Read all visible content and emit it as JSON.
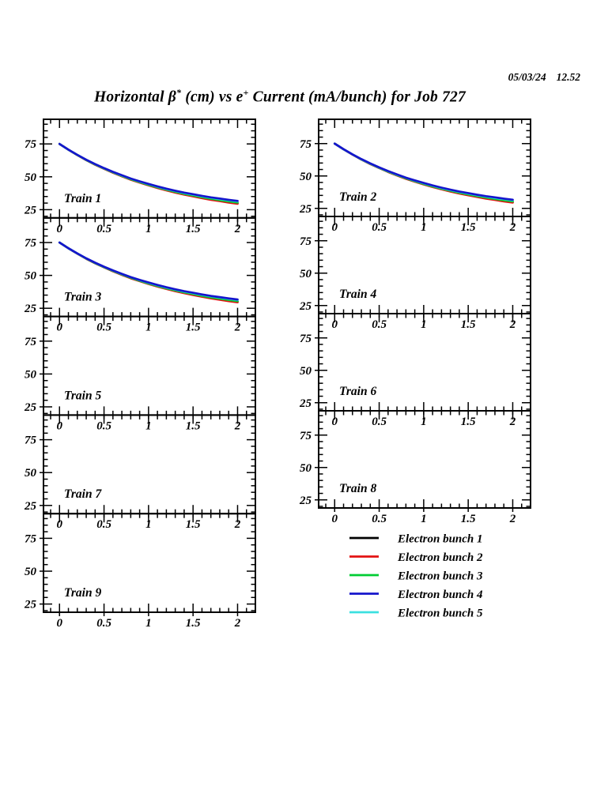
{
  "header": {
    "date": "05/03/24",
    "time": "12.52",
    "title_parts": {
      "t1": "Horizontal β",
      "sup1": "*",
      "t2": " (cm) vs e",
      "sup2": "+",
      "t3": " Current (mA/bunch) for Job 727"
    }
  },
  "chart_data": {
    "type": "line",
    "title": "Horizontal β* (cm) vs e+ Current (mA/bunch) for Job 727",
    "xlabel": "e+ Current (mA/bunch)",
    "ylabel": "Horizontal β* (cm)",
    "xlim": [
      -0.18,
      2.2
    ],
    "ylim": [
      18.75,
      93.75
    ],
    "x_major_ticks": [
      "0",
      "0.5",
      "1",
      "1.5",
      "2"
    ],
    "x_major_values": [
      0,
      0.5,
      1,
      1.5,
      2
    ],
    "x_minor_step": 0.1,
    "y_major_ticks": [
      "75",
      "50",
      "25"
    ],
    "y_major_values": [
      75,
      50,
      25
    ],
    "y_minor_step": 5,
    "grid": false,
    "legend_position": "below-right",
    "panels": [
      {
        "label": "Train 1",
        "has_data": true
      },
      {
        "label": "Train 2",
        "has_data": true
      },
      {
        "label": "Train 3",
        "has_data": true
      },
      {
        "label": "Train 4",
        "has_data": false
      },
      {
        "label": "Train 5",
        "has_data": false
      },
      {
        "label": "Train 6",
        "has_data": false
      },
      {
        "label": "Train 7",
        "has_data": false
      },
      {
        "label": "Train 8",
        "has_data": false
      },
      {
        "label": "Train 9",
        "has_data": false
      }
    ],
    "x": [
      0,
      0.1,
      0.2,
      0.3,
      0.4,
      0.5,
      0.6,
      0.7,
      0.8,
      0.9,
      1.0,
      1.1,
      1.2,
      1.3,
      1.4,
      1.5,
      1.6,
      1.7,
      1.8,
      1.9,
      2.0
    ],
    "series": [
      {
        "name": "Electron bunch 1",
        "color": "#000000",
        "values": [
          75.0,
          70.6,
          66.6,
          62.7,
          59.3,
          56.2,
          53.3,
          50.5,
          48.0,
          45.8,
          43.7,
          41.7,
          39.9,
          38.3,
          36.8,
          35.4,
          34.1,
          32.9,
          31.9,
          30.8,
          29.9
        ]
      },
      {
        "name": "Electron bunch 2",
        "color": "#e31212",
        "values": [
          75.0,
          70.6,
          66.5,
          62.7,
          59.2,
          56.1,
          53.1,
          50.4,
          47.8,
          45.6,
          43.5,
          41.5,
          39.7,
          38.0,
          36.5,
          35.1,
          33.8,
          32.5,
          31.5,
          30.4,
          29.5
        ]
      },
      {
        "name": "Electron bunch 3",
        "color": "#00cc33",
        "values": [
          75.0,
          70.6,
          66.6,
          62.8,
          59.4,
          56.3,
          53.4,
          50.7,
          48.2,
          46.0,
          43.9,
          42.0,
          40.2,
          38.6,
          37.1,
          35.8,
          34.5,
          33.3,
          32.3,
          31.3,
          30.4
        ]
      },
      {
        "name": "Electron bunch 4",
        "color": "#1515cc",
        "values": [
          75.0,
          70.7,
          66.7,
          63.0,
          59.7,
          56.6,
          53.8,
          51.2,
          48.7,
          46.6,
          44.6,
          42.7,
          41.0,
          39.4,
          38.0,
          36.8,
          35.5,
          34.4,
          33.5,
          32.5,
          31.7
        ]
      },
      {
        "name": "Electron bunch 5",
        "color": "#3be0e0",
        "values": [
          75.0,
          70.6,
          66.7,
          62.9,
          59.6,
          56.5,
          53.7,
          51.0,
          48.6,
          46.4,
          44.4,
          42.5,
          40.7,
          39.2,
          37.7,
          36.5,
          35.2,
          34.1,
          33.1,
          32.2,
          31.3
        ]
      }
    ],
    "draw_order": [
      0,
      1,
      2,
      4,
      3
    ]
  }
}
